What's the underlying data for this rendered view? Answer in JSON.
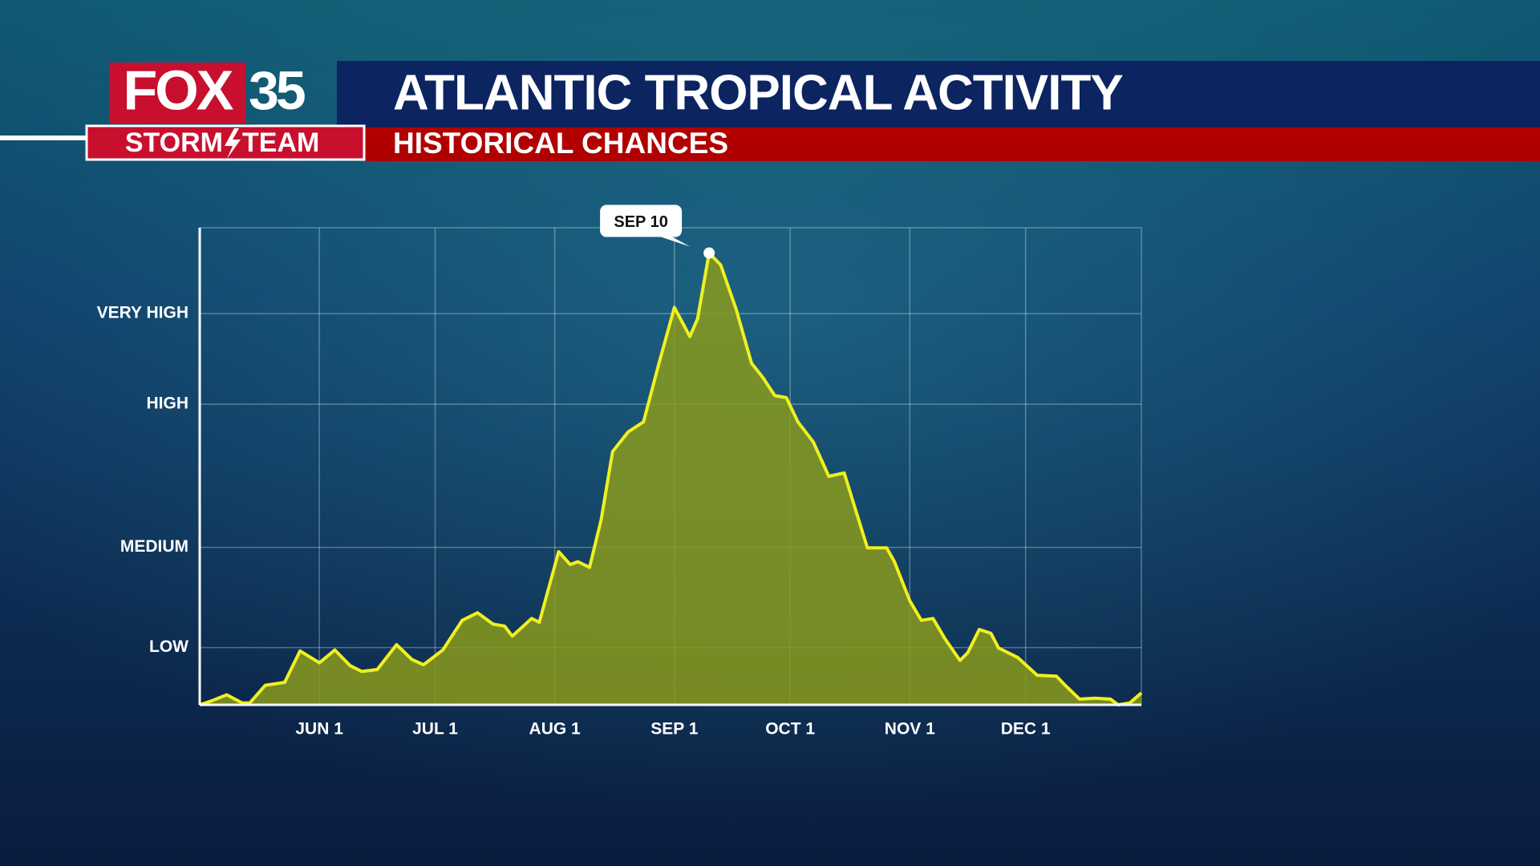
{
  "branding": {
    "network": "FOX",
    "channel": "35",
    "team_left": "STORM",
    "team_right": "TEAM"
  },
  "chart_data": {
    "type": "area",
    "title": "ATLANTIC TROPICAL ACTIVITY",
    "subtitle": "HISTORICAL CHANCES",
    "x": [
      121,
      124,
      128,
      132,
      134,
      138,
      143,
      147,
      152,
      156,
      160,
      163,
      167,
      172,
      176,
      179,
      184,
      189,
      193,
      197,
      200,
      202,
      207,
      209,
      214,
      217,
      219,
      222,
      225,
      228,
      232,
      236,
      240,
      244,
      248,
      250,
      253,
      256,
      260,
      264,
      267,
      270,
      273,
      276,
      280,
      284,
      288,
      291,
      294,
      299,
      301,
      305,
      308,
      311,
      314,
      318,
      320,
      323,
      326,
      328,
      333,
      335,
      338,
      343,
      345,
      349,
      353,
      357,
      359,
      362,
      365
    ],
    "series": [
      {
        "name": "Tropical activity",
        "color": "#f0f020",
        "fill": "#8a9a1c",
        "values": [
          0,
          0.8,
          2.1,
          0.4,
          0.4,
          4.1,
          4.7,
          11.3,
          8.8,
          11.5,
          8.2,
          7.0,
          7.4,
          12.6,
          9.5,
          8.4,
          11.5,
          17.7,
          19.3,
          16.9,
          16.5,
          14.4,
          18.1,
          17.3,
          32.1,
          29.4,
          30.0,
          28.8,
          38.7,
          53.1,
          57.2,
          59.3,
          71.6,
          83.3,
          77.2,
          80.9,
          94.7,
          92.2,
          82.9,
          71.6,
          68.5,
          64.8,
          64.4,
          59.3,
          55.1,
          47.9,
          48.6,
          40.7,
          32.9,
          32.9,
          30.0,
          21.8,
          17.7,
          18.1,
          14.0,
          9.3,
          10.9,
          15.8,
          15.0,
          11.9,
          9.9,
          8.4,
          6.2,
          6.0,
          4.3,
          1.2,
          1.4,
          1.2,
          0,
          0.4,
          2.5
        ]
      }
    ],
    "xlim": [
      121,
      365
    ],
    "xticks": [
      {
        "value": 152,
        "label": "JUN 1"
      },
      {
        "value": 182,
        "label": "JUL 1"
      },
      {
        "value": 213,
        "label": "AUG 1"
      },
      {
        "value": 244,
        "label": "SEP 1"
      },
      {
        "value": 274,
        "label": "OCT 1"
      },
      {
        "value": 305,
        "label": "NOV 1"
      },
      {
        "value": 335,
        "label": "DEC 1"
      }
    ],
    "ylim": [
      0,
      100
    ],
    "yticks": [
      {
        "value": 12,
        "label": "LOW"
      },
      {
        "value": 33,
        "label": "MEDIUM"
      },
      {
        "value": 63,
        "label": "HIGH"
      },
      {
        "value": 82,
        "label": "VERY HIGH"
      }
    ],
    "grid": true,
    "annotations": [
      {
        "text": "SEP 10",
        "x": 253,
        "y": 94.7
      }
    ]
  }
}
